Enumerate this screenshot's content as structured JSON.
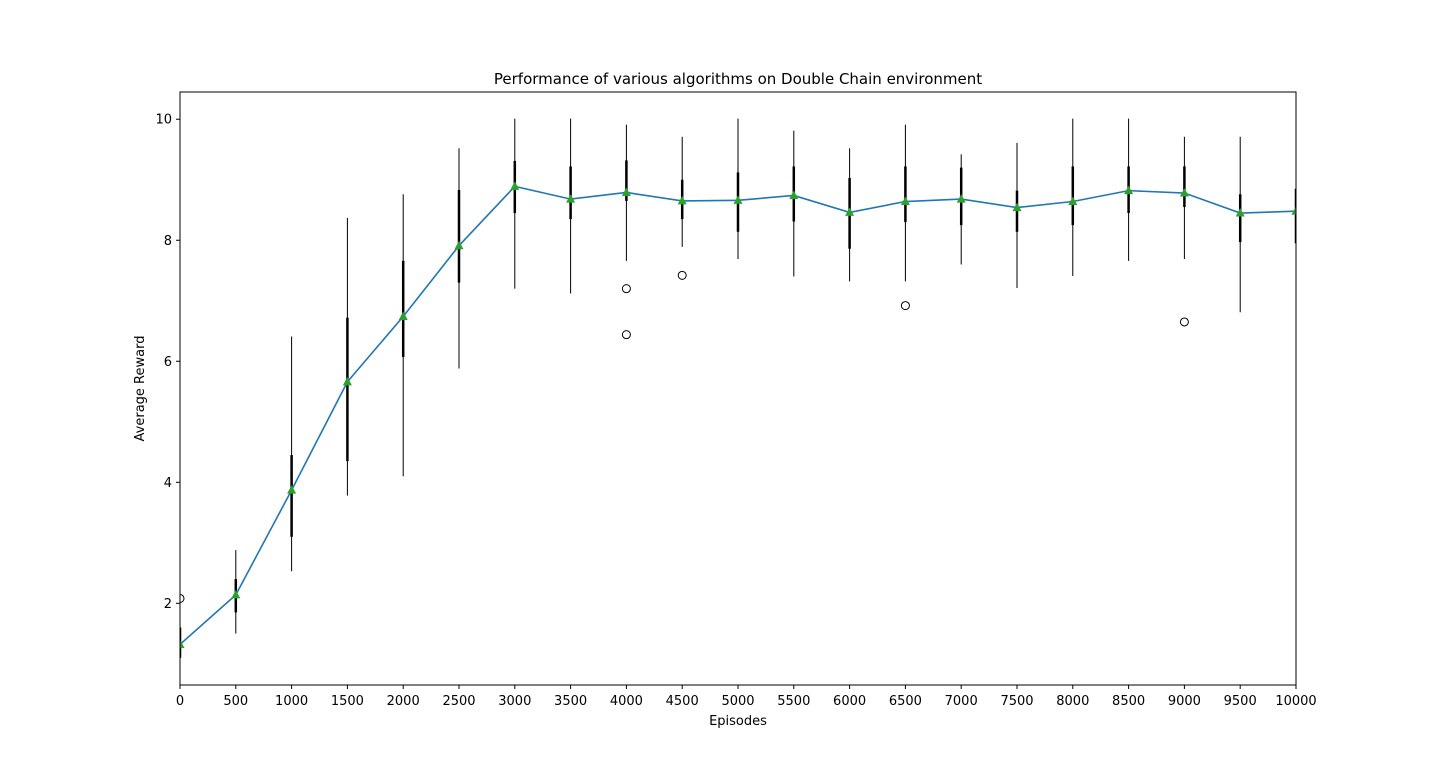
{
  "chart_data": {
    "type": "line",
    "title": "Performance of various algorithms on Double Chain environment",
    "xlabel": "Episodes",
    "ylabel": "Average Reward",
    "xlim": [
      0,
      10000
    ],
    "ylim": [
      0.65,
      10.45
    ],
    "grid": false,
    "legend": "none",
    "x_ticks": [
      "0",
      "500",
      "1000",
      "1500",
      "2000",
      "2500",
      "3000",
      "3500",
      "4000",
      "4500",
      "5000",
      "5500",
      "6000",
      "6500",
      "7000",
      "7500",
      "8000",
      "8500",
      "9000",
      "9500",
      "10000"
    ],
    "y_ticks": [
      "2",
      "4",
      "6",
      "8",
      "10"
    ],
    "colors": {
      "line": "#1f77b4",
      "mean_marker": "#2ca02c",
      "box": "#000000"
    },
    "series": [
      {
        "name": "mean reward",
        "x": [
          0,
          500,
          1000,
          1500,
          2000,
          2500,
          3000,
          3500,
          4000,
          4500,
          5000,
          5500,
          6000,
          6500,
          7000,
          7500,
          8000,
          8500,
          9000,
          9500,
          10000
        ],
        "values": [
          1.32,
          2.14,
          3.87,
          5.66,
          6.74,
          7.91,
          8.89,
          8.68,
          8.79,
          8.65,
          8.66,
          8.74,
          8.46,
          8.64,
          8.68,
          8.54,
          8.64,
          8.82,
          8.78,
          8.45,
          8.48
        ]
      }
    ],
    "boxes": [
      {
        "x": 0,
        "whislo": 0.9,
        "q1": 1.1,
        "q3": 1.6,
        "whishi": 1.9
      },
      {
        "x": 500,
        "whislo": 1.5,
        "q1": 1.85,
        "q3": 2.4,
        "whishi": 2.88
      },
      {
        "x": 1000,
        "whislo": 2.53,
        "q1": 3.1,
        "q3": 4.45,
        "whishi": 6.41
      },
      {
        "x": 1500,
        "whislo": 3.78,
        "q1": 4.35,
        "q3": 6.72,
        "whishi": 8.37
      },
      {
        "x": 2000,
        "whislo": 4.1,
        "q1": 6.07,
        "q3": 7.66,
        "whishi": 8.76
      },
      {
        "x": 2500,
        "whislo": 5.88,
        "q1": 7.3,
        "q3": 8.83,
        "whishi": 9.52
      },
      {
        "x": 3000,
        "whislo": 7.2,
        "q1": 8.45,
        "q3": 9.31,
        "whishi": 10.01
      },
      {
        "x": 3500,
        "whislo": 7.12,
        "q1": 8.35,
        "q3": 9.22,
        "whishi": 10.01
      },
      {
        "x": 4000,
        "whislo": 7.66,
        "q1": 8.65,
        "q3": 9.32,
        "whishi": 9.91
      },
      {
        "x": 4500,
        "whislo": 7.89,
        "q1": 8.35,
        "q3": 9.0,
        "whishi": 9.71
      },
      {
        "x": 5000,
        "whislo": 7.69,
        "q1": 8.14,
        "q3": 9.12,
        "whishi": 10.01
      },
      {
        "x": 5500,
        "whislo": 7.4,
        "q1": 8.31,
        "q3": 9.22,
        "whishi": 9.81
      },
      {
        "x": 6000,
        "whislo": 7.32,
        "q1": 7.86,
        "q3": 9.03,
        "whishi": 9.52
      },
      {
        "x": 6500,
        "whislo": 7.32,
        "q1": 8.3,
        "q3": 9.22,
        "whishi": 9.91
      },
      {
        "x": 7000,
        "whislo": 7.6,
        "q1": 8.25,
        "q3": 9.2,
        "whishi": 9.42
      },
      {
        "x": 7500,
        "whislo": 7.21,
        "q1": 8.14,
        "q3": 8.82,
        "whishi": 9.61
      },
      {
        "x": 8000,
        "whislo": 7.41,
        "q1": 8.25,
        "q3": 9.22,
        "whishi": 10.01
      },
      {
        "x": 8500,
        "whislo": 7.66,
        "q1": 8.45,
        "q3": 9.22,
        "whishi": 10.01
      },
      {
        "x": 9000,
        "whislo": 7.69,
        "q1": 8.55,
        "q3": 9.22,
        "whishi": 9.71
      },
      {
        "x": 9500,
        "whislo": 6.81,
        "q1": 7.97,
        "q3": 8.76,
        "whishi": 9.71
      },
      {
        "x": 10000,
        "whislo": 7.3,
        "q1": 7.95,
        "q3": 8.85,
        "whishi": 9.9
      }
    ],
    "outliers": [
      {
        "x": 0,
        "y": 2.08
      },
      {
        "x": 4000,
        "y": 7.2
      },
      {
        "x": 4000,
        "y": 6.44
      },
      {
        "x": 4500,
        "y": 7.42
      },
      {
        "x": 6500,
        "y": 6.92
      },
      {
        "x": 9000,
        "y": 6.65
      }
    ]
  }
}
